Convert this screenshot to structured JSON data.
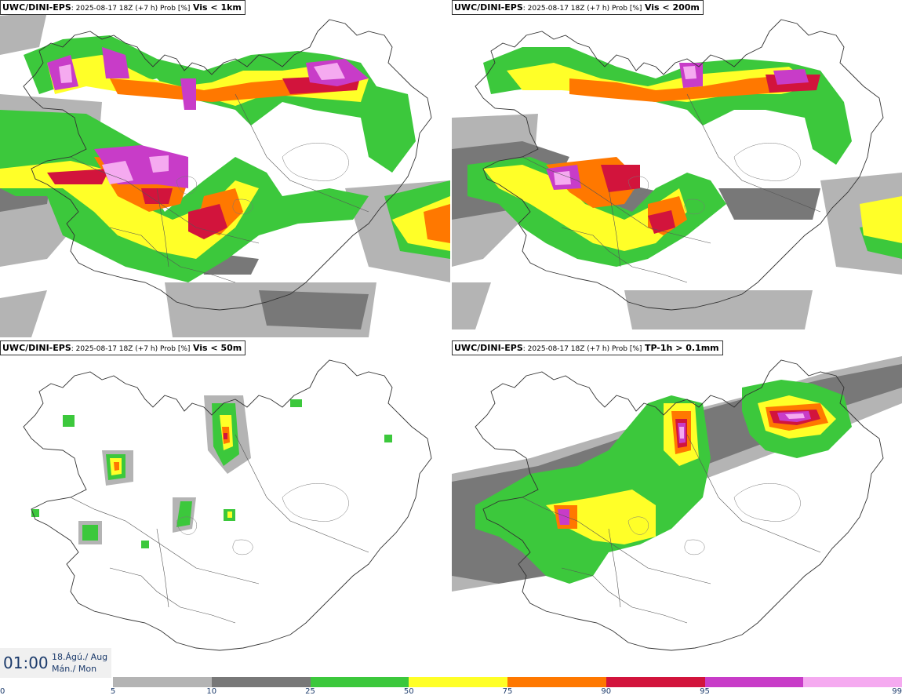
{
  "panels": [
    {
      "model": "UWC/DINI-EPS",
      "run": ": 2025-08-17 18Z (+7 h) Prob [%]",
      "field": "Vis < 1km"
    },
    {
      "model": "UWC/DINI-EPS",
      "run": ": 2025-08-17 18Z (+7 h) Prob [%]",
      "field": "Vis < 200m"
    },
    {
      "model": "UWC/DINI-EPS",
      "run": ": 2025-08-17 18Z (+7 h) Prob [%]",
      "field": "Vis < 50m"
    },
    {
      "model": "UWC/DINI-EPS",
      "run": ": 2025-08-17 18Z (+7 h) Prob [%]",
      "field": "TP-1h > 0.1mm"
    }
  ],
  "timebox": {
    "time": "01:00",
    "date_line1": "18.Ágú./ Aug",
    "date_line2": "Mán./ Mon"
  },
  "colorbar": {
    "colors": [
      "#b4b4b4",
      "#787878",
      "#3cc83c",
      "#ffff28",
      "#ff7800",
      "#d2143c",
      "#c83cc8",
      "#f5aaf0"
    ],
    "ticks": [
      "0",
      "5",
      "10",
      "25",
      "50",
      "75",
      "90",
      "95",
      "99"
    ]
  },
  "palette": {
    "p5": "#b4b4b4",
    "p10": "#787878",
    "p25": "#3cc83c",
    "p50": "#ffff28",
    "p75": "#ff7800",
    "p90": "#d2143c",
    "p95": "#c83cc8",
    "p99": "#f5aaf0"
  }
}
